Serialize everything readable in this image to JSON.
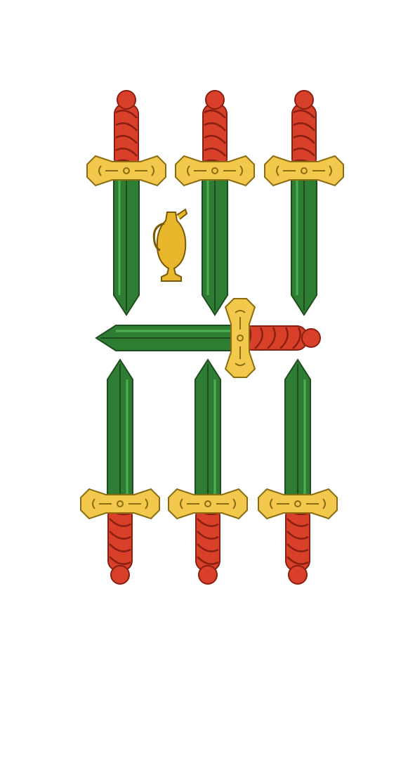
{
  "card": {
    "suit": "swords",
    "pips": 7,
    "extra_emblem": "jug-icon"
  },
  "colors": {
    "background": "#ffffff",
    "blade": "#2e7d32",
    "blade_light": "#4caf50",
    "blade_edge": "#1b4d1e",
    "guard": "#f2c94c",
    "guard_edge": "#8a6d12",
    "handle": "#d8402a",
    "handle_edge": "#8a1f12",
    "jug": "#e8b72c",
    "jug_edge": "#7a5a08"
  }
}
